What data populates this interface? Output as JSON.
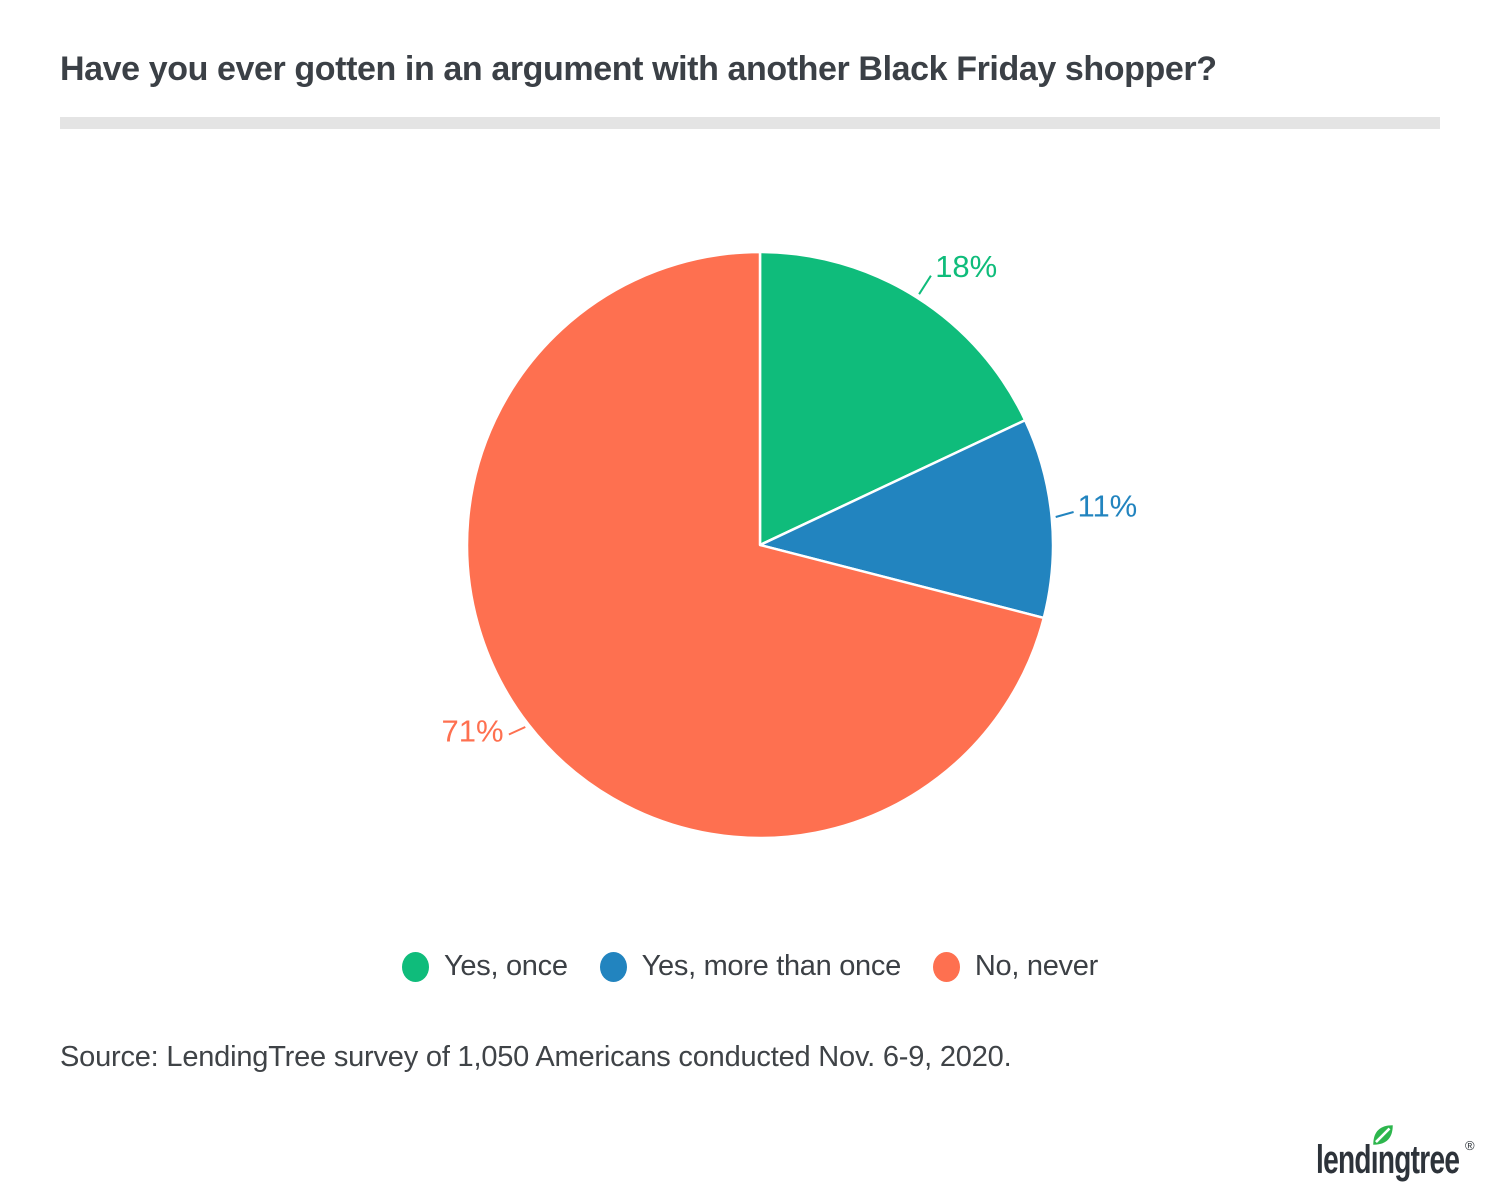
{
  "page": {
    "title": "Have you ever gotten in an argument with another Black Friday shopper?",
    "source": "Source: LendingTree survey of 1,050 Americans conducted Nov. 6-9, 2020.",
    "logo": {
      "text": "lendingtree",
      "registered": "®"
    }
  },
  "chart_data": {
    "type": "pie",
    "title": "Have you ever gotten in an argument with another Black Friday shopper?",
    "categories": [
      "Yes, once",
      "Yes, more than once",
      "No, never"
    ],
    "values": [
      18,
      11,
      71
    ],
    "labels": [
      "18%",
      "11%",
      "71%"
    ],
    "unit": "%",
    "colors": [
      "#0fbc7b",
      "#2284bf",
      "#fe7050"
    ],
    "start_angle_deg": 0,
    "direction": "clockwise",
    "legend_position": "bottom",
    "divider_color": "#e4e4e4",
    "leaf_color": "#2db64d"
  }
}
